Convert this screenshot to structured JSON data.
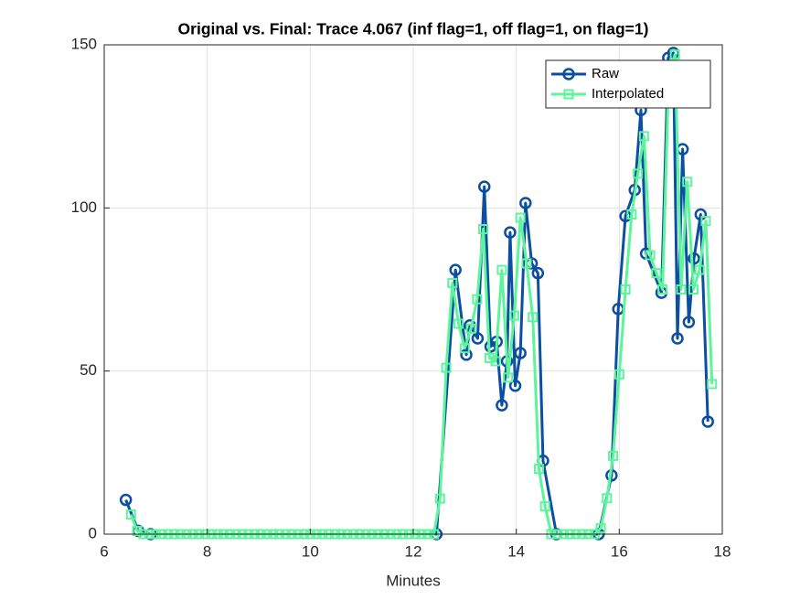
{
  "chart_data": {
    "type": "line",
    "title": "Original vs. Final: Trace 4.067 (inf flag=1, off flag=1, on flag=1)",
    "x_label": "Minutes",
    "xlim": [
      6,
      18
    ],
    "xticks": [
      6,
      8,
      10,
      12,
      14,
      16,
      18
    ],
    "ylim": [
      0,
      150
    ],
    "yticks": [
      0,
      50,
      100,
      150
    ],
    "grid": true,
    "legend": "top-right",
    "series": [
      {
        "name": "Raw",
        "color": "#0b4ea2",
        "marker": "circle",
        "x": [
          6.42,
          6.66,
          6.9,
          12.45,
          12.82,
          13.03,
          13.1,
          13.25,
          13.38,
          13.5,
          13.62,
          13.72,
          13.82,
          13.88,
          13.98,
          14.08,
          14.18,
          14.3,
          14.42,
          14.52,
          14.78,
          15.6,
          15.85,
          15.98,
          16.12,
          16.3,
          16.42,
          16.52,
          16.82,
          16.95,
          17.05,
          17.13,
          17.23,
          17.35,
          17.45,
          17.58,
          17.72
        ],
        "values": [
          10.5,
          1,
          0,
          0,
          81,
          55,
          64,
          60,
          106.5,
          57.5,
          59,
          39.5,
          53,
          92.5,
          45.5,
          55.5,
          101.5,
          83,
          80,
          22.5,
          0,
          0,
          18,
          69,
          97.5,
          105.5,
          130,
          86,
          74,
          146,
          147.5,
          60,
          118,
          65,
          84.5,
          98,
          34.5
        ]
      },
      {
        "name": "Interpolated",
        "color": "#5cf59b",
        "marker": "square",
        "x": [
          6.52,
          6.64,
          6.76,
          6.88,
          7.0,
          7.12,
          7.24,
          7.36,
          7.48,
          7.6,
          7.72,
          7.84,
          7.96,
          8.08,
          8.2,
          8.32,
          8.44,
          8.56,
          8.68,
          8.8,
          8.92,
          9.04,
          9.16,
          9.28,
          9.4,
          9.52,
          9.64,
          9.76,
          9.88,
          10.0,
          10.12,
          10.24,
          10.36,
          10.48,
          10.6,
          10.72,
          10.84,
          10.96,
          11.08,
          11.2,
          11.32,
          11.44,
          11.56,
          11.68,
          11.8,
          11.92,
          12.04,
          12.16,
          12.28,
          12.4,
          12.52,
          12.64,
          12.76,
          12.88,
          13.0,
          13.12,
          13.24,
          13.36,
          13.48,
          13.6,
          13.72,
          13.84,
          13.96,
          14.08,
          14.2,
          14.32,
          14.44,
          14.56,
          14.68,
          14.8,
          14.92,
          15.04,
          15.16,
          15.28,
          15.4,
          15.52,
          15.64,
          15.76,
          15.88,
          16.0,
          16.12,
          16.24,
          16.36,
          16.48,
          16.6,
          16.72,
          16.84,
          16.96,
          17.08,
          17.2,
          17.32,
          17.44,
          17.56,
          17.68,
          17.8
        ],
        "values": [
          6,
          1,
          0,
          0,
          0,
          0,
          0,
          0,
          0,
          0,
          0,
          0,
          0,
          0,
          0,
          0,
          0,
          0,
          0,
          0,
          0,
          0,
          0,
          0,
          0,
          0,
          0,
          0,
          0,
          0,
          0,
          0,
          0,
          0,
          0,
          0,
          0,
          0,
          0,
          0,
          0,
          0,
          0,
          0,
          0,
          0,
          0,
          0,
          0,
          0,
          10.9,
          51,
          77,
          64.5,
          57,
          63,
          72,
          93.5,
          54,
          53,
          81,
          48,
          67,
          97,
          83,
          66.5,
          20,
          8.5,
          0,
          0,
          0,
          0,
          0,
          0,
          0,
          0,
          1.8,
          11,
          24,
          49,
          75,
          98,
          110.5,
          122,
          85.5,
          80,
          75,
          140,
          147,
          75,
          108,
          75,
          81,
          96,
          46
        ]
      }
    ]
  }
}
